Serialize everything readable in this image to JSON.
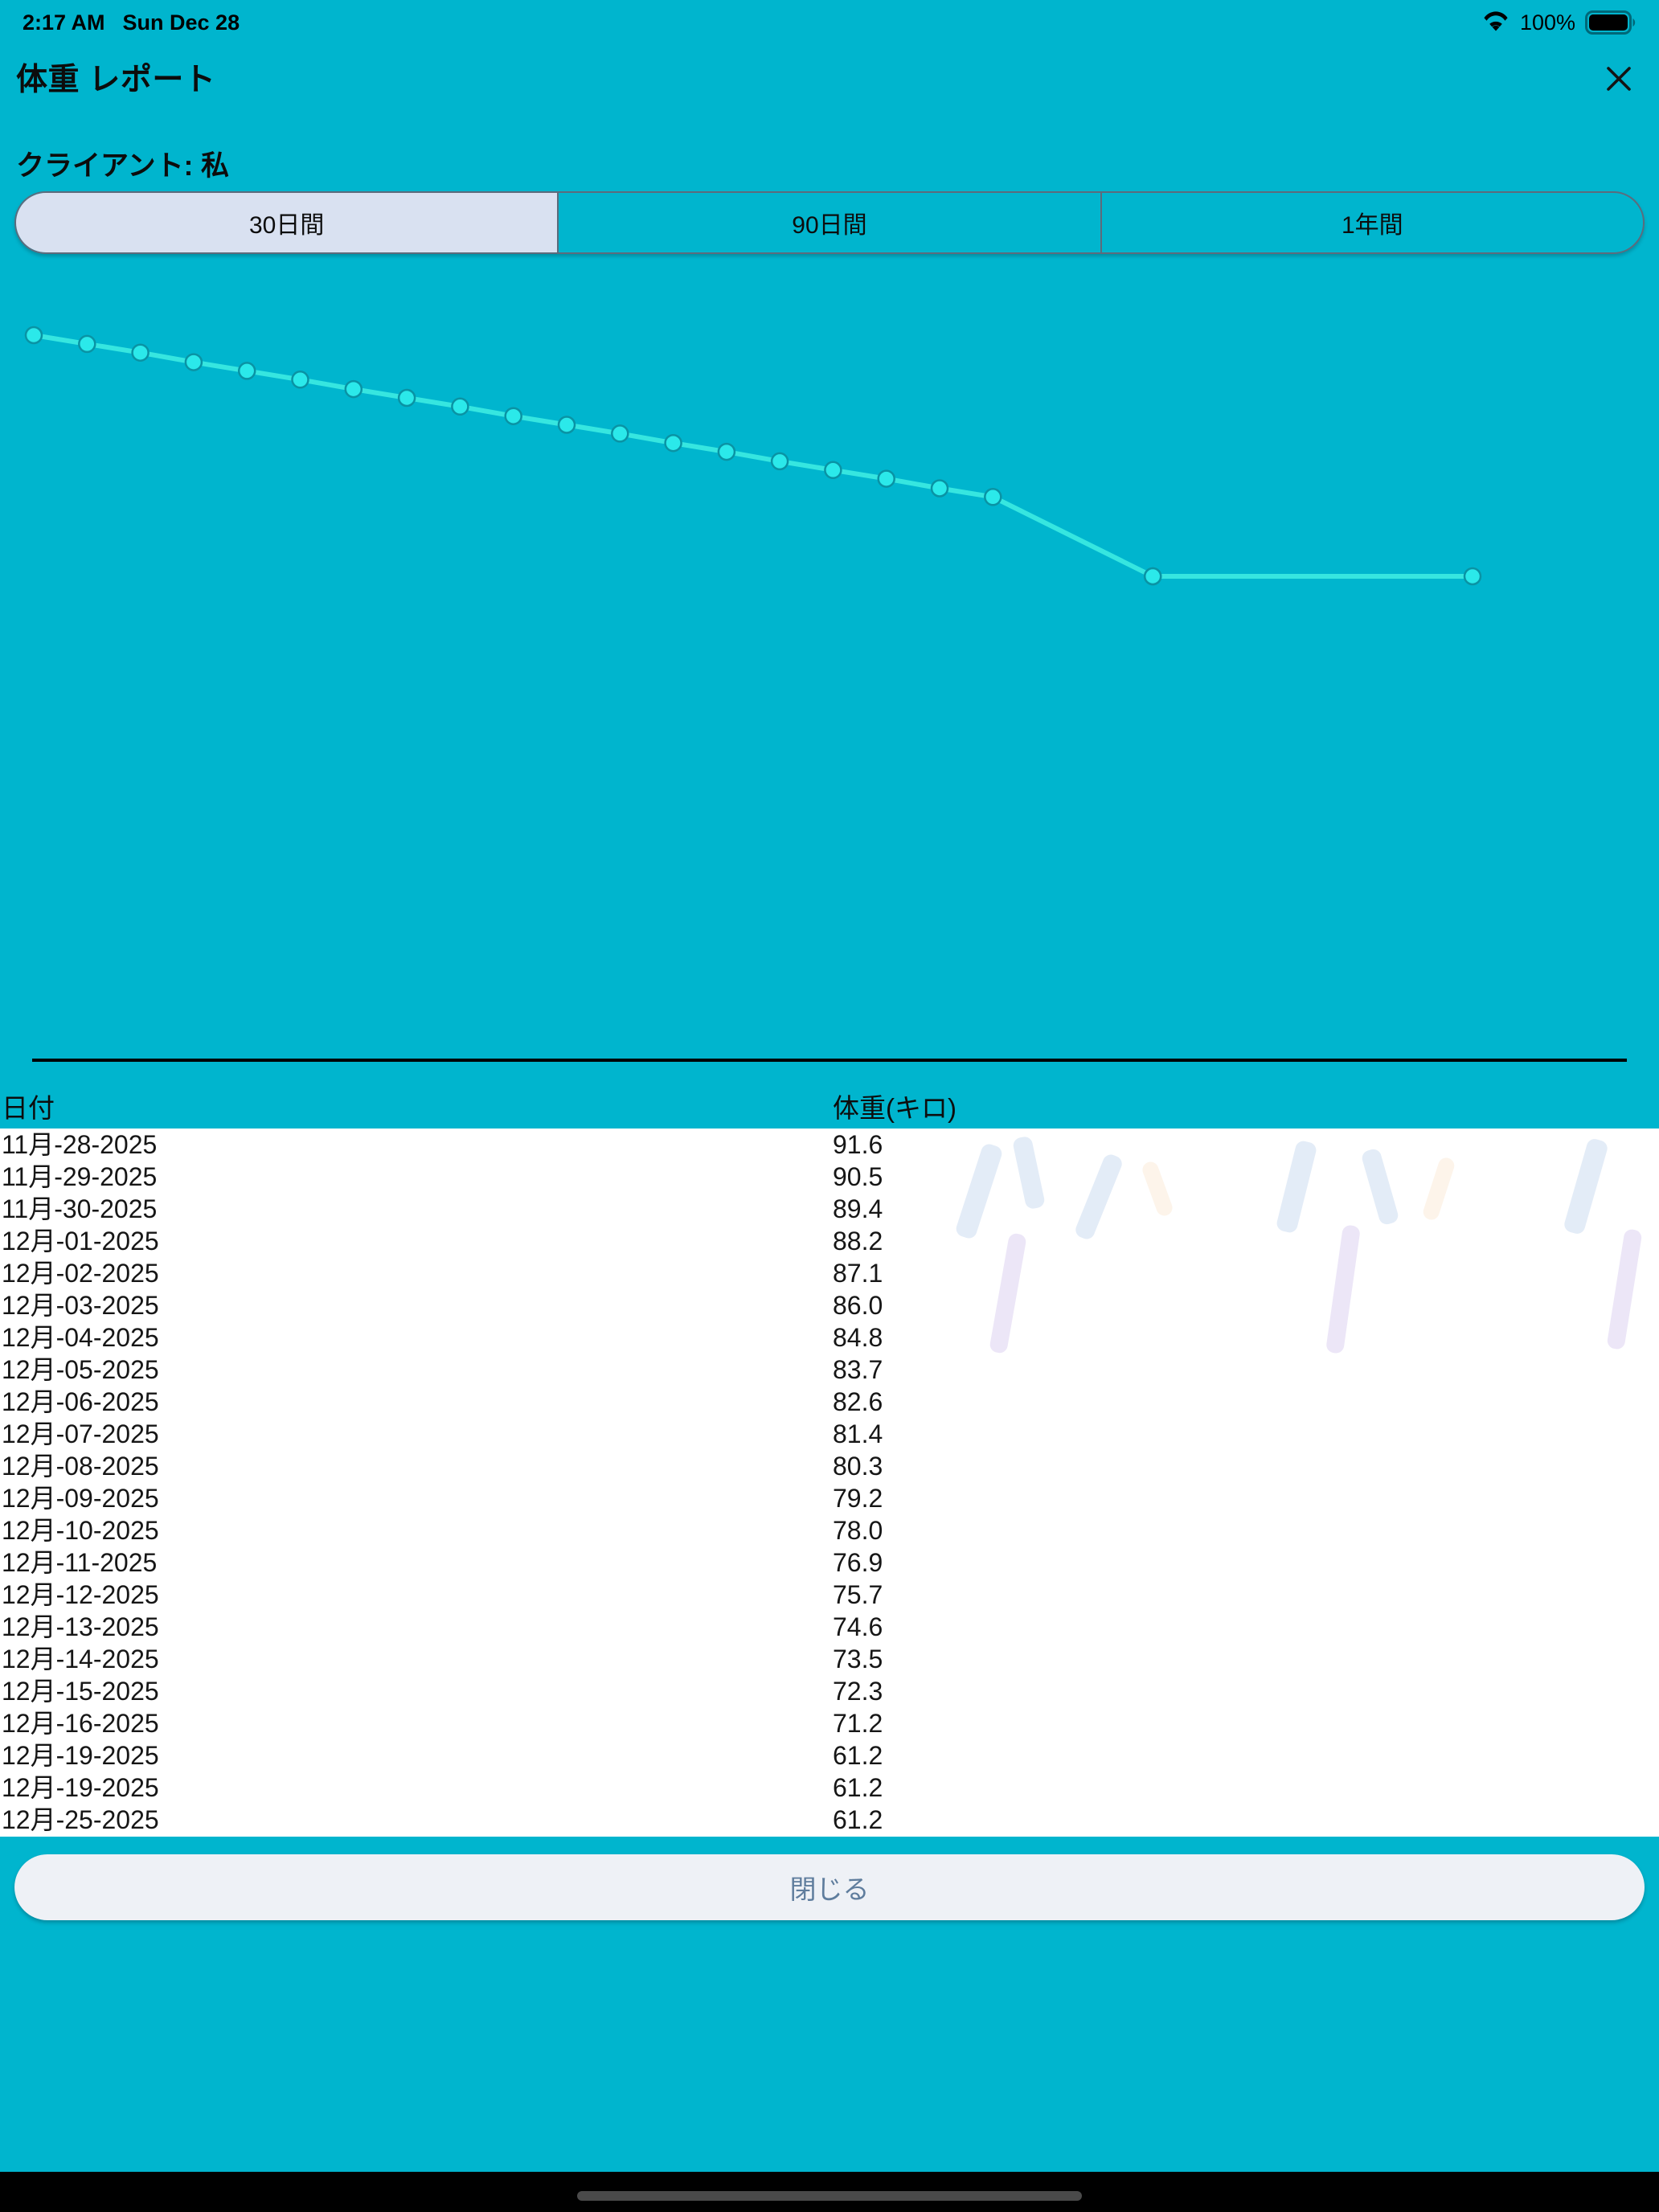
{
  "status_bar": {
    "time": "2:17 AM",
    "date": "Sun Dec 28",
    "battery_percent": "100%",
    "icons": [
      "wifi-icon",
      "battery-full-icon"
    ]
  },
  "header": {
    "title": "体重 レポート",
    "close_icon": "close-x-icon"
  },
  "client_label": "クライアント: 私",
  "range_tabs": [
    {
      "label": "30日間",
      "selected": true
    },
    {
      "label": "90日間",
      "selected": false
    },
    {
      "label": "1年間",
      "selected": false
    }
  ],
  "chart_data": {
    "type": "line",
    "title": "",
    "xlabel": "",
    "ylabel": "",
    "legend": "none",
    "grid": false,
    "axes_visible": false,
    "dates": [
      "11月-28-2025",
      "11月-29-2025",
      "11月-30-2025",
      "12月-01-2025",
      "12月-02-2025",
      "12月-03-2025",
      "12月-04-2025",
      "12月-05-2025",
      "12月-06-2025",
      "12月-07-2025",
      "12月-08-2025",
      "12月-09-2025",
      "12月-10-2025",
      "12月-11-2025",
      "12月-12-2025",
      "12月-13-2025",
      "12月-14-2025",
      "12月-15-2025",
      "12月-16-2025",
      "12月-19-2025",
      "12月-19-2025",
      "12月-25-2025"
    ],
    "day_offsets": [
      0,
      1,
      2,
      3,
      4,
      5,
      6,
      7,
      8,
      9,
      10,
      11,
      12,
      13,
      14,
      15,
      16,
      17,
      18,
      21,
      21,
      27
    ],
    "weights": [
      91.6,
      90.5,
      89.4,
      88.2,
      87.1,
      86.0,
      84.8,
      83.7,
      82.6,
      81.4,
      80.3,
      79.2,
      78.0,
      76.9,
      75.7,
      74.6,
      73.5,
      72.3,
      71.2,
      61.2,
      61.2,
      61.2
    ],
    "ylim": [
      61.2,
      91.6
    ],
    "line_color": "#36e6e0",
    "point_fill": "#2be9ea",
    "point_stroke": "#0a93a4"
  },
  "table": {
    "columns": [
      "日付",
      "体重(キロ)"
    ],
    "rows": [
      [
        "11月-28-2025",
        "91.6"
      ],
      [
        "11月-29-2025",
        "90.5"
      ],
      [
        "11月-30-2025",
        "89.4"
      ],
      [
        "12月-01-2025",
        "88.2"
      ],
      [
        "12月-02-2025",
        "87.1"
      ],
      [
        "12月-03-2025",
        "86.0"
      ],
      [
        "12月-04-2025",
        "84.8"
      ],
      [
        "12月-05-2025",
        "83.7"
      ],
      [
        "12月-06-2025",
        "82.6"
      ],
      [
        "12月-07-2025",
        "81.4"
      ],
      [
        "12月-08-2025",
        "80.3"
      ],
      [
        "12月-09-2025",
        "79.2"
      ],
      [
        "12月-10-2025",
        "78.0"
      ],
      [
        "12月-11-2025",
        "76.9"
      ],
      [
        "12月-12-2025",
        "75.7"
      ],
      [
        "12月-13-2025",
        "74.6"
      ],
      [
        "12月-14-2025",
        "73.5"
      ],
      [
        "12月-15-2025",
        "72.3"
      ],
      [
        "12月-16-2025",
        "71.2"
      ],
      [
        "12月-19-2025",
        "61.2"
      ],
      [
        "12月-19-2025",
        "61.2"
      ],
      [
        "12月-25-2025",
        "61.2"
      ]
    ]
  },
  "close_button_label": "閉じる",
  "colors": {
    "background": "#00b5ce",
    "selected_segment": "#d9e1f1",
    "segment_border": "#5d6b7c",
    "divider": "#000000",
    "table_background": "#ffffff",
    "close_button_bg": "#eef1f6",
    "close_button_text": "#5f7d9d",
    "home_indicator": "#4a4a4a",
    "chart_line": "#36e6e0",
    "chart_point": "#2be9ea"
  }
}
